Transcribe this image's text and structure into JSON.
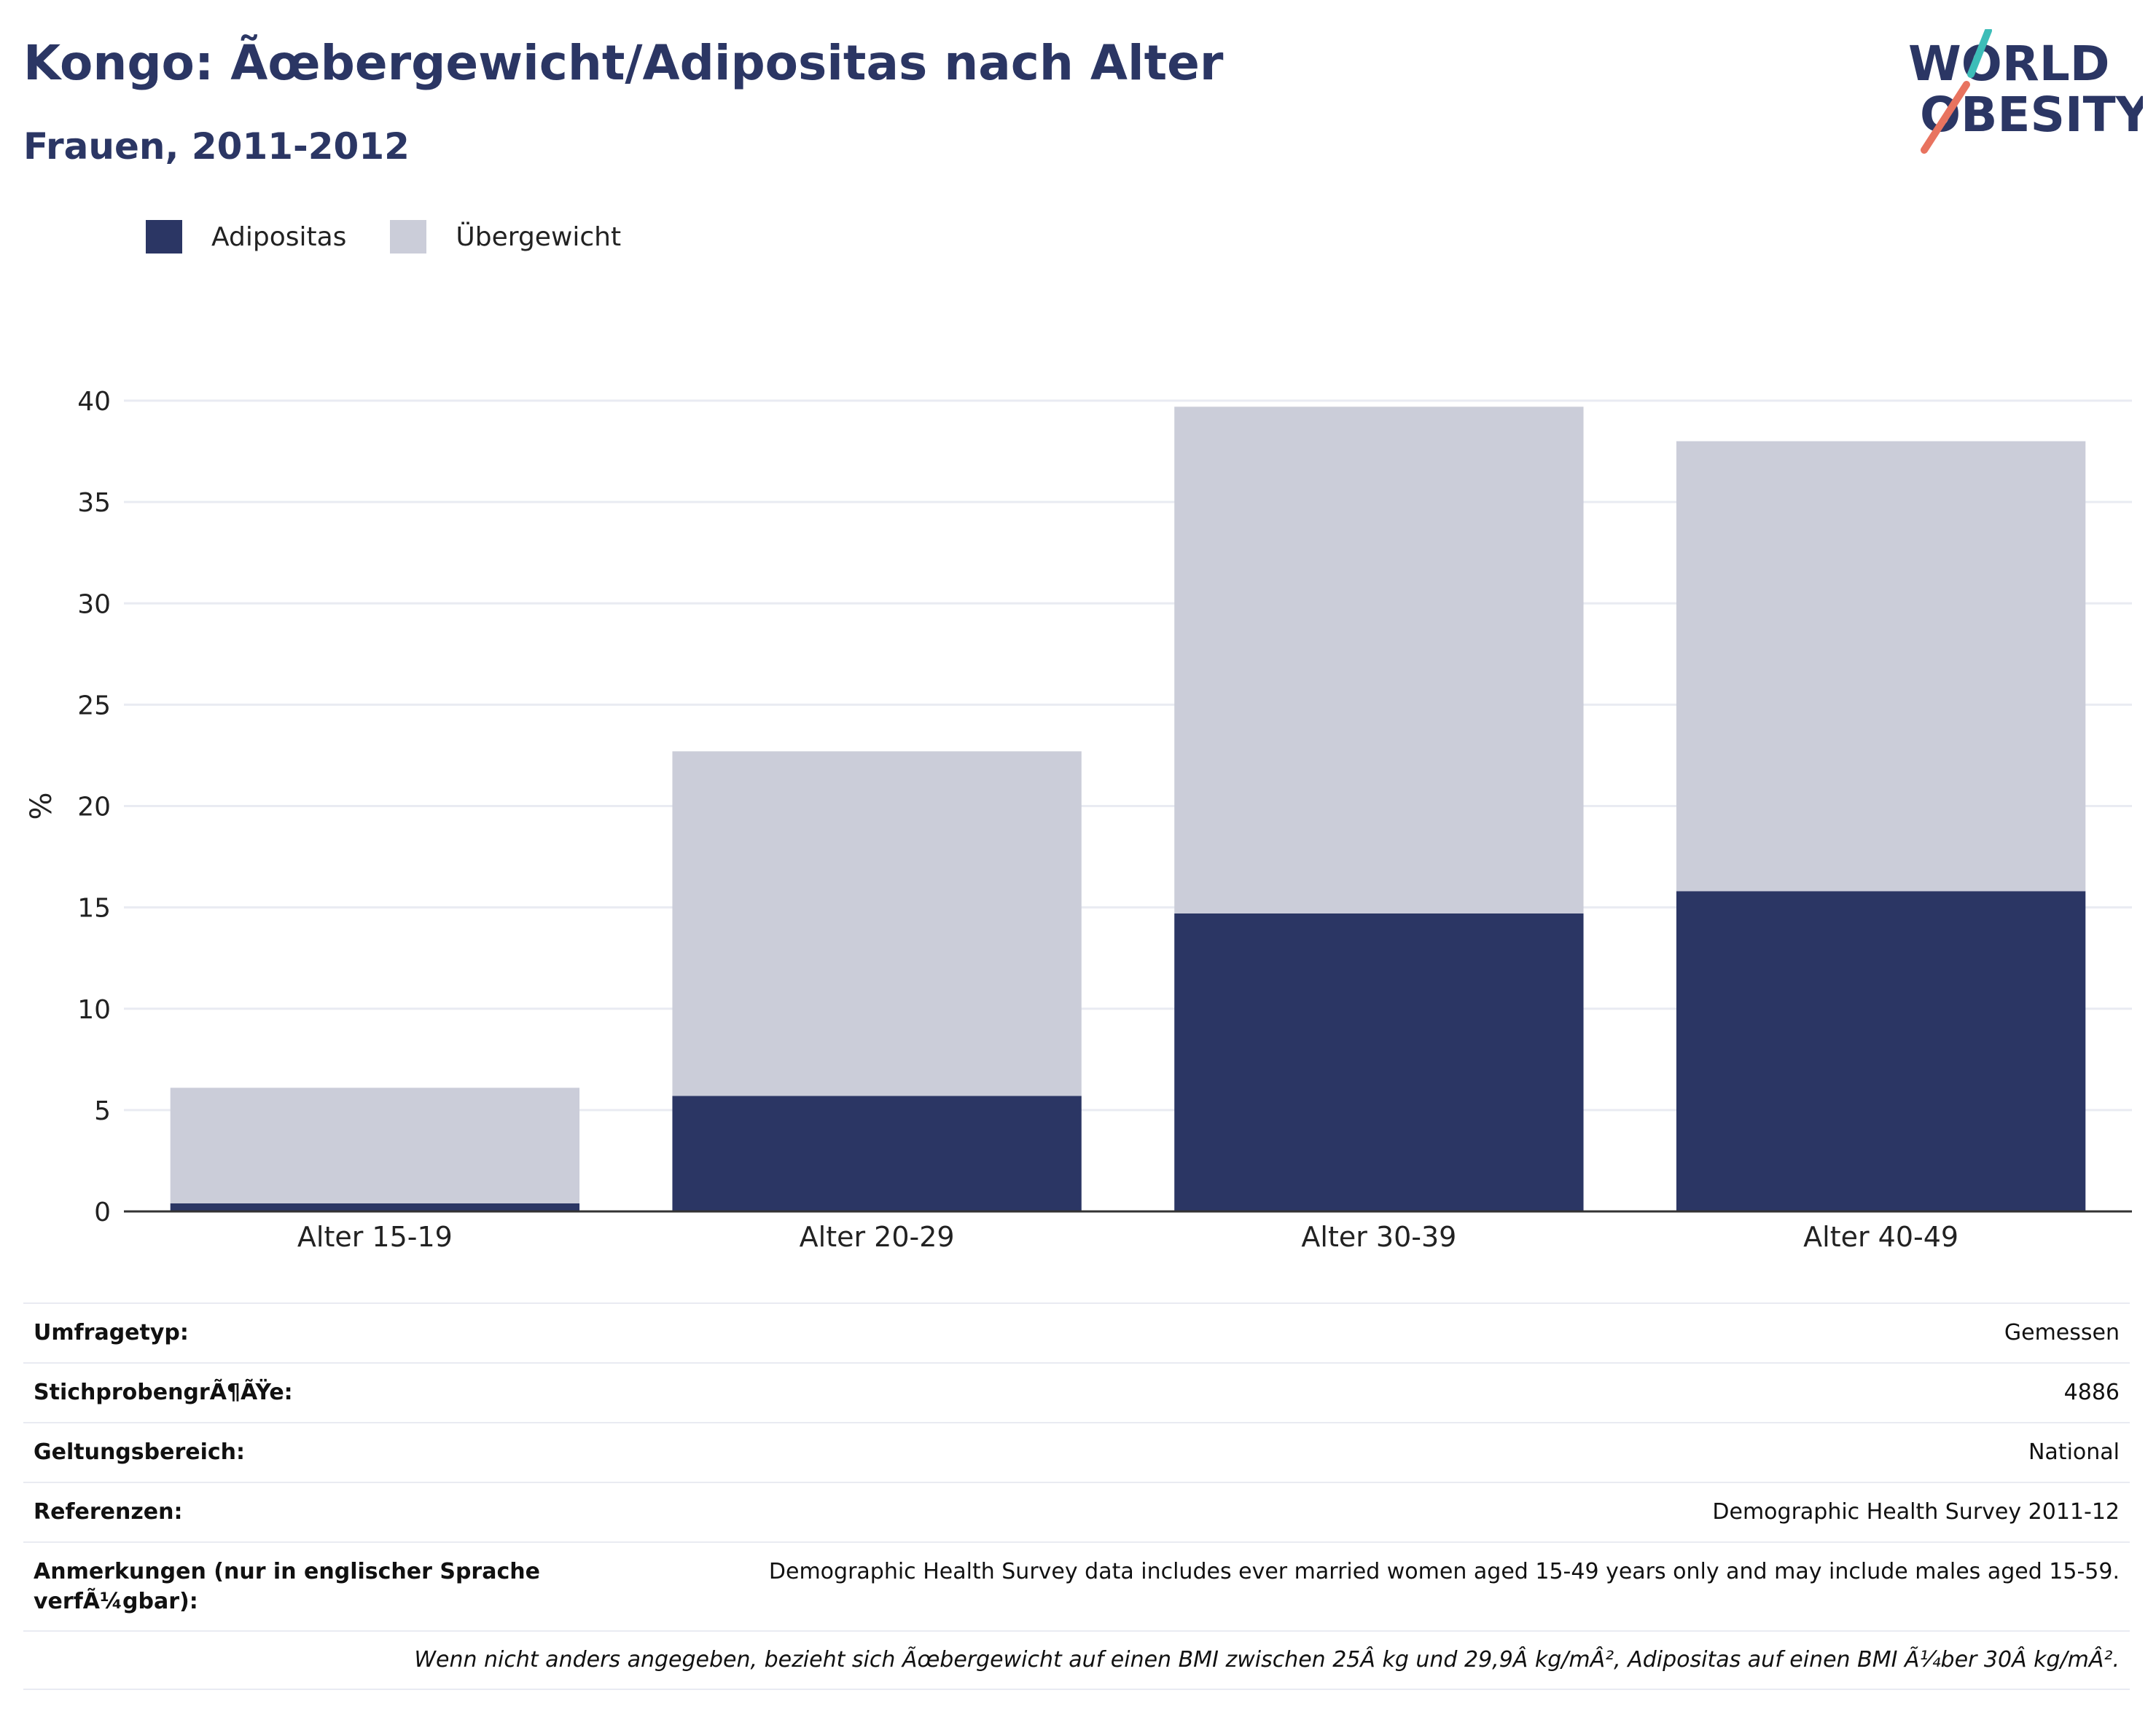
{
  "header": {
    "title": "Kongo: Ãœbergewicht/Adipositas nach Alter",
    "subtitle": "Frauen, 2011-2012"
  },
  "logo": {
    "line1": "WORLD",
    "line2": "OBESITY",
    "colors": {
      "text": "#2b3664",
      "slash_top": "#3dbdb8",
      "slash_bottom": "#e8735f"
    }
  },
  "legend": [
    {
      "label": "Adipositas",
      "color": "#2b3664"
    },
    {
      "label": "Übergewicht",
      "color": "#cbcdd9"
    }
  ],
  "chart_data": {
    "type": "bar",
    "stacked": true,
    "categories": [
      "Alter 15-19",
      "Alter 20-29",
      "Alter 30-39",
      "Alter 40-49"
    ],
    "series": [
      {
        "name": "Adipositas",
        "values": [
          0.4,
          5.7,
          14.7,
          15.8
        ],
        "color": "#2b3664"
      },
      {
        "name": "Übergewicht",
        "values": [
          5.7,
          17.0,
          25.0,
          22.2
        ],
        "color": "#cbcdd9"
      }
    ],
    "ylabel": "%",
    "ylim": [
      0,
      40
    ],
    "yticks": [
      0,
      5,
      10,
      15,
      20,
      25,
      30,
      35,
      40
    ],
    "grid": true,
    "legend_position": "top-left"
  },
  "info_table": {
    "rows": [
      {
        "key": "Umfragetyp:",
        "value": "Gemessen"
      },
      {
        "key": "StichprobengrÃ¶ÃŸe:",
        "value": "4886"
      },
      {
        "key": "Geltungsbereich:",
        "value": "National"
      },
      {
        "key": "Referenzen:",
        "value": "Demographic Health Survey 2011-12"
      },
      {
        "key": "Anmerkungen (nur in englischer Sprache verfÃ¼gbar):",
        "value": "Demographic Health Survey data includes ever married women aged 15-49 years only and may include males aged 15-59."
      }
    ],
    "footnote": "Wenn nicht anders angegeben, bezieht sich Ãœbergewicht auf einen BMI zwischen 25Â kg und 29,9Â kg/mÂ², Adipositas auf einen BMI Ã¼ber 30Â kg/mÂ²."
  }
}
